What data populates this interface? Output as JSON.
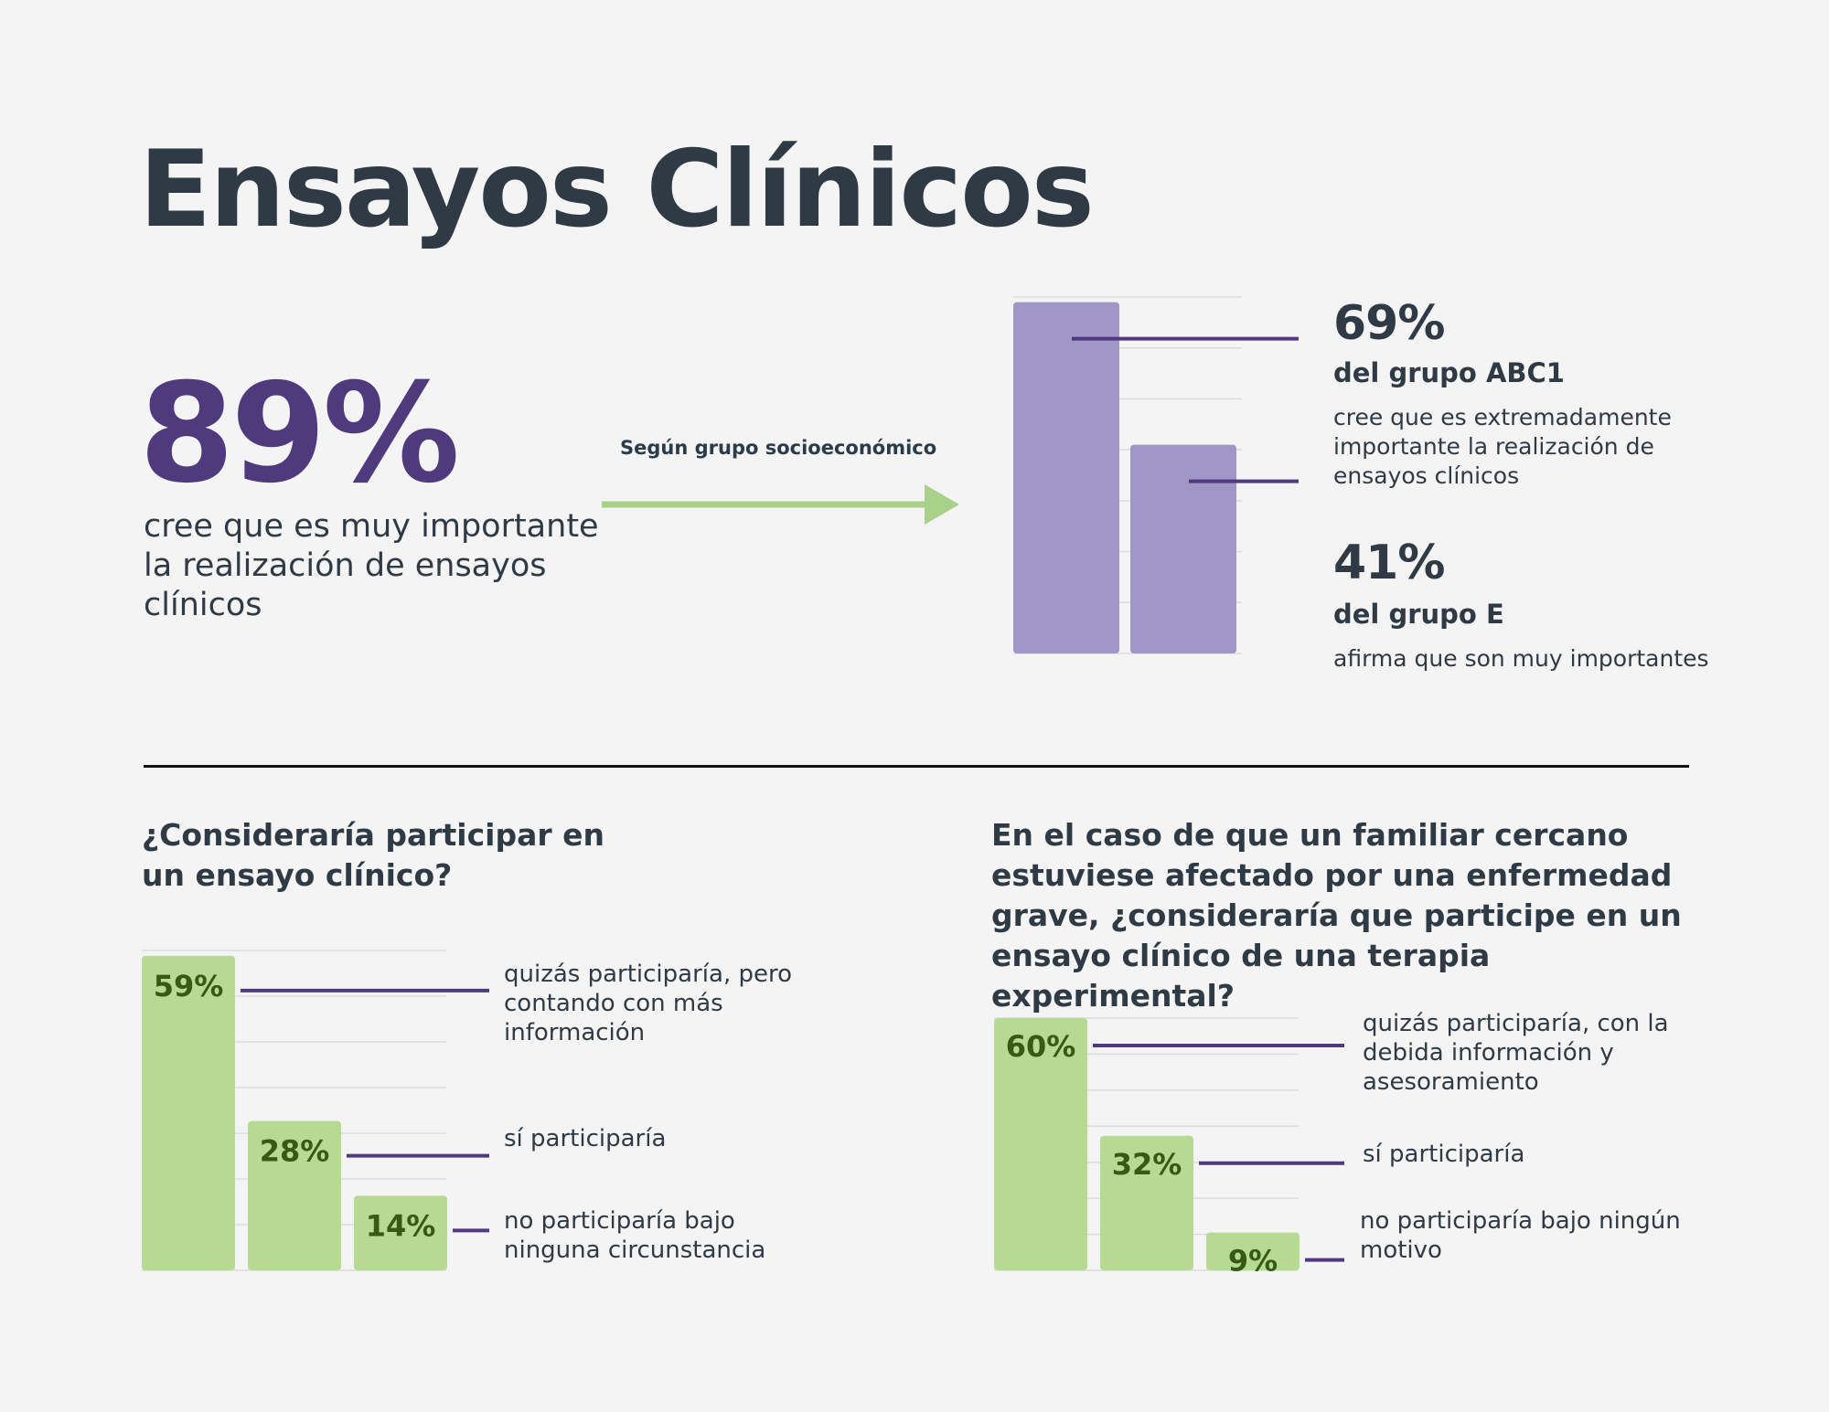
{
  "title": "Ensayos Clínicos",
  "headline": {
    "value": "89%",
    "description": "cree que es muy importante la realización de ensayos clínicos",
    "color": "#4f3a7e"
  },
  "arrow_caption": "Según grupo socioeconómico",
  "colors": {
    "text": "#2f3a45",
    "purple_bar": "#a097c7",
    "green_bar": "#b7da93",
    "green_label": "#365a14",
    "leader_line": "#4f3a7e",
    "arrow": "#a9d18a",
    "grid": "#dcdcdc"
  },
  "socio": {
    "items": [
      {
        "value_label": "69%",
        "group": "del grupo ABC1",
        "desc": "cree que es extremadamente importante la realización de ensayos clínicos"
      },
      {
        "value_label": "41%",
        "group": "del grupo E",
        "desc": "afirma que son muy importantes"
      }
    ]
  },
  "q1": {
    "title": "¿Consideraría participar en un ensayo clínico?",
    "labels": [
      "quizás participaría, pero contando con más información",
      "sí participaría",
      "no participaría bajo ninguna circunstancia"
    ]
  },
  "q2": {
    "title": "En el caso de que un familiar cercano estuviese afectado por una enfermedad grave, ¿consideraría que participe en un ensayo clínico de una terapia experimental?",
    "labels": [
      "quizás participaría, con la debida información y asesoramiento",
      "sí participaría",
      "no participaría bajo ningún motivo"
    ]
  },
  "chart_data": [
    {
      "type": "bar",
      "title": "Según grupo socioeconómico",
      "categories": [
        "del grupo ABC1",
        "del grupo E"
      ],
      "values": [
        69,
        41
      ],
      "ylim": [
        0,
        70
      ],
      "grid": true
    },
    {
      "type": "bar",
      "title": "¿Consideraría participar en un ensayo clínico?",
      "categories": [
        "quizás participaría, pero contando con más información",
        "sí participaría",
        "no participaría bajo ninguna circunstancia"
      ],
      "values": [
        59,
        28,
        14
      ],
      "data_labels": [
        "59%",
        "28%",
        "14%"
      ],
      "ylim": [
        0,
        60
      ],
      "grid": true
    },
    {
      "type": "bar",
      "title": "En el caso de que un familiar cercano estuviese afectado por una enfermedad grave, ¿consideraría que participe en un ensayo clínico de una terapia experimental?",
      "categories": [
        "quizás participaría, con la debida información y asesoramiento",
        "sí participaría",
        "no participaría bajo ningún motivo"
      ],
      "values": [
        60,
        32,
        9
      ],
      "data_labels": [
        "60%",
        "32%",
        "9%"
      ],
      "ylim": [
        0,
        60
      ],
      "grid": true
    }
  ]
}
